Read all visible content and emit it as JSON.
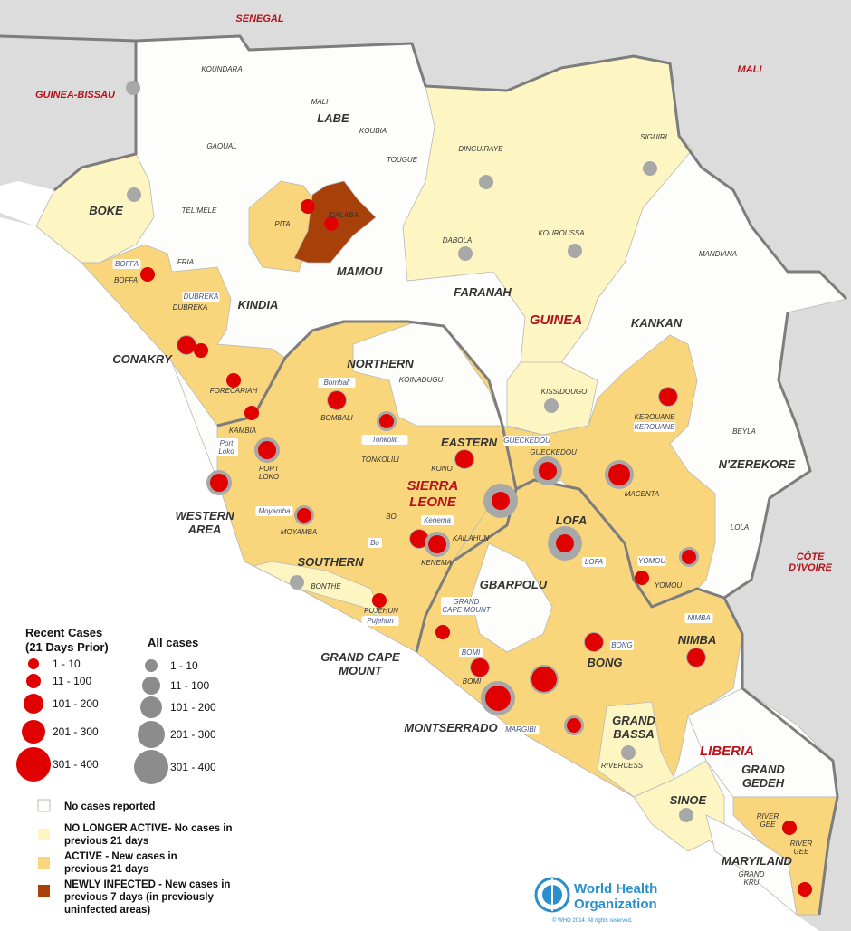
{
  "colors": {
    "neighbor": "#dcdcdc",
    "no_cases": "#fdfdfb",
    "no_longer_active": "#fdf6c3",
    "active": "#f9d67c",
    "newly_infected": "#a8400a",
    "recent_cases": "#e00000",
    "all_cases": "#a8a8a8",
    "border": "#7d7d7d",
    "who_blue": "#2b8fcc"
  },
  "labels": {
    "countries": [
      {
        "lines": [
          "SENEGAL"
        ]
      },
      {
        "lines": [
          "GUINEA-BISSAU"
        ]
      },
      {
        "lines": [
          "MALI"
        ]
      },
      {
        "lines": [
          "GUINEA"
        ]
      },
      {
        "lines": [
          "SIERRA",
          "LEONE"
        ]
      },
      {
        "lines": [
          "LIBERIA"
        ]
      },
      {
        "lines": [
          "CÔTE",
          "D'IVOIRE"
        ]
      }
    ],
    "regions": [
      {
        "lines": [
          "LABE"
        ]
      },
      {
        "lines": [
          "BOKE"
        ]
      },
      {
        "lines": [
          "MAMOU"
        ]
      },
      {
        "lines": [
          "KINDIA"
        ]
      },
      {
        "lines": [
          "FARANAH"
        ]
      },
      {
        "lines": [
          "KANKAN"
        ]
      },
      {
        "lines": [
          "N'ZEREKORE"
        ]
      },
      {
        "lines": [
          "CONAKRY"
        ]
      },
      {
        "lines": [
          "NORTHERN"
        ]
      },
      {
        "lines": [
          "EASTERN"
        ]
      },
      {
        "lines": [
          "WESTERN",
          "AREA"
        ]
      },
      {
        "lines": [
          "SOUTHERN"
        ]
      },
      {
        "lines": [
          "LOFA"
        ]
      },
      {
        "lines": [
          "GBARPOLU"
        ]
      },
      {
        "lines": [
          "GRAND CAPE",
          "MOUNT"
        ]
      },
      {
        "lines": [
          "BONG"
        ]
      },
      {
        "lines": [
          "NIMBA"
        ]
      },
      {
        "lines": [
          "MONTSERRADO"
        ]
      },
      {
        "lines": [
          "GRAND",
          "BASSA"
        ]
      },
      {
        "lines": [
          "SINOE"
        ]
      },
      {
        "lines": [
          "GRAND",
          "GEDEH"
        ]
      },
      {
        "lines": [
          "MARYILAND"
        ]
      }
    ],
    "districts": [
      {
        "lines": [
          "KOUNDARA"
        ]
      },
      {
        "lines": [
          "MALI"
        ]
      },
      {
        "lines": [
          "KOUBIA"
        ]
      },
      {
        "lines": [
          "TOUGUE"
        ]
      },
      {
        "lines": [
          "GAOUAL"
        ]
      },
      {
        "lines": [
          "DINGUIRAYE"
        ]
      },
      {
        "lines": [
          "SIGUIRI"
        ]
      },
      {
        "lines": [
          "TELIMELE"
        ]
      },
      {
        "lines": [
          "PITA"
        ]
      },
      {
        "lines": [
          "DALABA"
        ]
      },
      {
        "lines": [
          "DABOLA"
        ]
      },
      {
        "lines": [
          "KOUROUSSA"
        ]
      },
      {
        "lines": [
          "MANDIANA"
        ]
      },
      {
        "lines": [
          "BOFFA"
        ]
      },
      {
        "lines": [
          "BOFFA"
        ]
      },
      {
        "lines": [
          "FRIA"
        ]
      },
      {
        "lines": [
          "DUBREKA"
        ]
      },
      {
        "lines": [
          "DUBREKA"
        ]
      },
      {
        "lines": [
          "FORECARIAH"
        ]
      },
      {
        "lines": [
          "KAMBIA"
        ]
      },
      {
        "lines": [
          "KOINADUGU"
        ]
      },
      {
        "lines": [
          "Bombali"
        ]
      },
      {
        "lines": [
          "BOMBALI"
        ]
      },
      {
        "lines": [
          "Tonkolili"
        ]
      },
      {
        "lines": [
          "TONKOLILI"
        ]
      },
      {
        "lines": [
          "Port",
          "Loko"
        ]
      },
      {
        "lines": [
          "PORT",
          "LOKO"
        ]
      },
      {
        "lines": [
          "KONO"
        ]
      },
      {
        "lines": [
          "Moyamba"
        ]
      },
      {
        "lines": [
          "MOYAMBA"
        ]
      },
      {
        "lines": [
          "BO"
        ]
      },
      {
        "lines": [
          "Bo"
        ]
      },
      {
        "lines": [
          "Kenema"
        ]
      },
      {
        "lines": [
          "KENEMA"
        ]
      },
      {
        "lines": [
          "KAILAHUN"
        ]
      },
      {
        "lines": [
          "BONTHE"
        ]
      },
      {
        "lines": [
          "PUJEHUN"
        ]
      },
      {
        "lines": [
          "Pujehun"
        ]
      },
      {
        "lines": [
          "KISSIDOUGO"
        ]
      },
      {
        "lines": [
          "KEROUANE"
        ]
      },
      {
        "lines": [
          "KEROUANE"
        ]
      },
      {
        "lines": [
          "GUECKEDOU"
        ]
      },
      {
        "lines": [
          "GUECKEDOU"
        ]
      },
      {
        "lines": [
          "MACENTA"
        ]
      },
      {
        "lines": [
          "BEYLA"
        ]
      },
      {
        "lines": [
          "LOLA"
        ]
      },
      {
        "lines": [
          "LOFA"
        ]
      },
      {
        "lines": [
          "YOMOU"
        ]
      },
      {
        "lines": [
          "YOMOU"
        ]
      },
      {
        "lines": [
          "NIMBA"
        ]
      },
      {
        "lines": [
          "GRAND",
          "CAPE MOUNT"
        ]
      },
      {
        "lines": [
          "BOMI"
        ]
      },
      {
        "lines": [
          "BOMI"
        ]
      },
      {
        "lines": [
          "BONG"
        ]
      },
      {
        "lines": [
          "MARGIBI"
        ]
      },
      {
        "lines": [
          "RIVERCESS"
        ]
      },
      {
        "lines": [
          "RIVER",
          "GEE"
        ]
      },
      {
        "lines": [
          "RIVER",
          "GEE"
        ]
      },
      {
        "lines": [
          "GRAND",
          "KRU"
        ]
      }
    ]
  },
  "markers": [
    {
      "recent": null,
      "all": "1 - 10"
    },
    {
      "recent": null,
      "all": "1 - 10"
    },
    {
      "recent": null,
      "all": "1 - 10"
    },
    {
      "recent": null,
      "all": "1 - 10"
    },
    {
      "recent": null,
      "all": "1 - 10"
    },
    {
      "recent": null,
      "all": "1 - 10"
    },
    {
      "recent": null,
      "all": "1 - 10"
    },
    {
      "recent": null,
      "all": "1 - 10"
    },
    {
      "recent": null,
      "all": "1 - 10"
    },
    {
      "recent": null,
      "all": "1 - 10"
    },
    {
      "recent": "1 - 10",
      "all": "1 - 10"
    },
    {
      "recent": "1 - 10",
      "all": "1 - 10"
    },
    {
      "recent": "1 - 10",
      "all": "1 - 10"
    },
    {
      "recent": "11 - 100",
      "all": "11 - 100"
    },
    {
      "recent": "1 - 10",
      "all": "1 - 10"
    },
    {
      "recent": "1 - 10",
      "all": "1 - 10"
    },
    {
      "recent": "1 - 10",
      "all": "1 - 10"
    },
    {
      "recent": "11 - 100",
      "all": "101 - 200"
    },
    {
      "recent": "11 - 100",
      "all": "101 - 200"
    },
    {
      "recent": "11 - 100",
      "all": "11 - 100"
    },
    {
      "recent": "1 - 10",
      "all": "11 - 100"
    },
    {
      "recent": "11 - 100",
      "all": "11 - 100"
    },
    {
      "recent": "1 - 10",
      "all": "11 - 100"
    },
    {
      "recent": "11 - 100",
      "all": "11 - 100"
    },
    {
      "recent": "11 - 100",
      "all": "101 - 200"
    },
    {
      "recent": "11 - 100",
      "all": "301 - 400"
    },
    {
      "recent": "11 - 100",
      "all": "201 - 300"
    },
    {
      "recent": "101 - 200",
      "all": "201 - 300"
    },
    {
      "recent": "11 - 100",
      "all": "11 - 100"
    },
    {
      "recent": "11 - 100",
      "all": "301 - 400"
    },
    {
      "recent": "1 - 10",
      "all": "11 - 100"
    },
    {
      "recent": "1 - 10",
      "all": "1 - 10"
    },
    {
      "recent": "1 - 10",
      "all": "1 - 10"
    },
    {
      "recent": "1 - 10",
      "all": "1 - 10"
    },
    {
      "recent": "11 - 100",
      "all": "11 - 100"
    },
    {
      "recent": "11 - 100",
      "all": "11 - 100"
    },
    {
      "recent": "11 - 100",
      "all": "11 - 100"
    },
    {
      "recent": "201 - 300",
      "all": "201 - 300"
    },
    {
      "recent": "201 - 300",
      "all": "301 - 400"
    },
    {
      "recent": "1 - 10",
      "all": "11 - 100"
    },
    {
      "recent": "1 - 10",
      "all": "1 - 10"
    },
    {
      "recent": "1 - 10",
      "all": "1 - 10"
    }
  ],
  "legend": {
    "recent_title": [
      "Recent Cases",
      "(21 Days Prior)"
    ],
    "all_title": "All cases",
    "ranges": [
      "1 - 10",
      "11 - 100",
      "101 - 200",
      "201 - 300",
      "301 - 400"
    ],
    "categories": [
      {
        "key": "no_cases",
        "lines": [
          "No cases reported"
        ]
      },
      {
        "key": "no_longer_active",
        "lines": [
          "NO LONGER ACTIVE- No cases in",
          "previous 21 days"
        ]
      },
      {
        "key": "active",
        "lines": [
          "ACTIVE - New cases in",
          "previous 21 days"
        ]
      },
      {
        "key": "newly_infected",
        "lines": [
          "NEWLY INFECTED - New cases in",
          "previous  7 days (in previously",
          "uninfected areas)"
        ]
      }
    ]
  },
  "logo": {
    "name_lines": [
      "World Health",
      "Organization"
    ],
    "copyright": "© WHO  2014. All rights reserved."
  }
}
